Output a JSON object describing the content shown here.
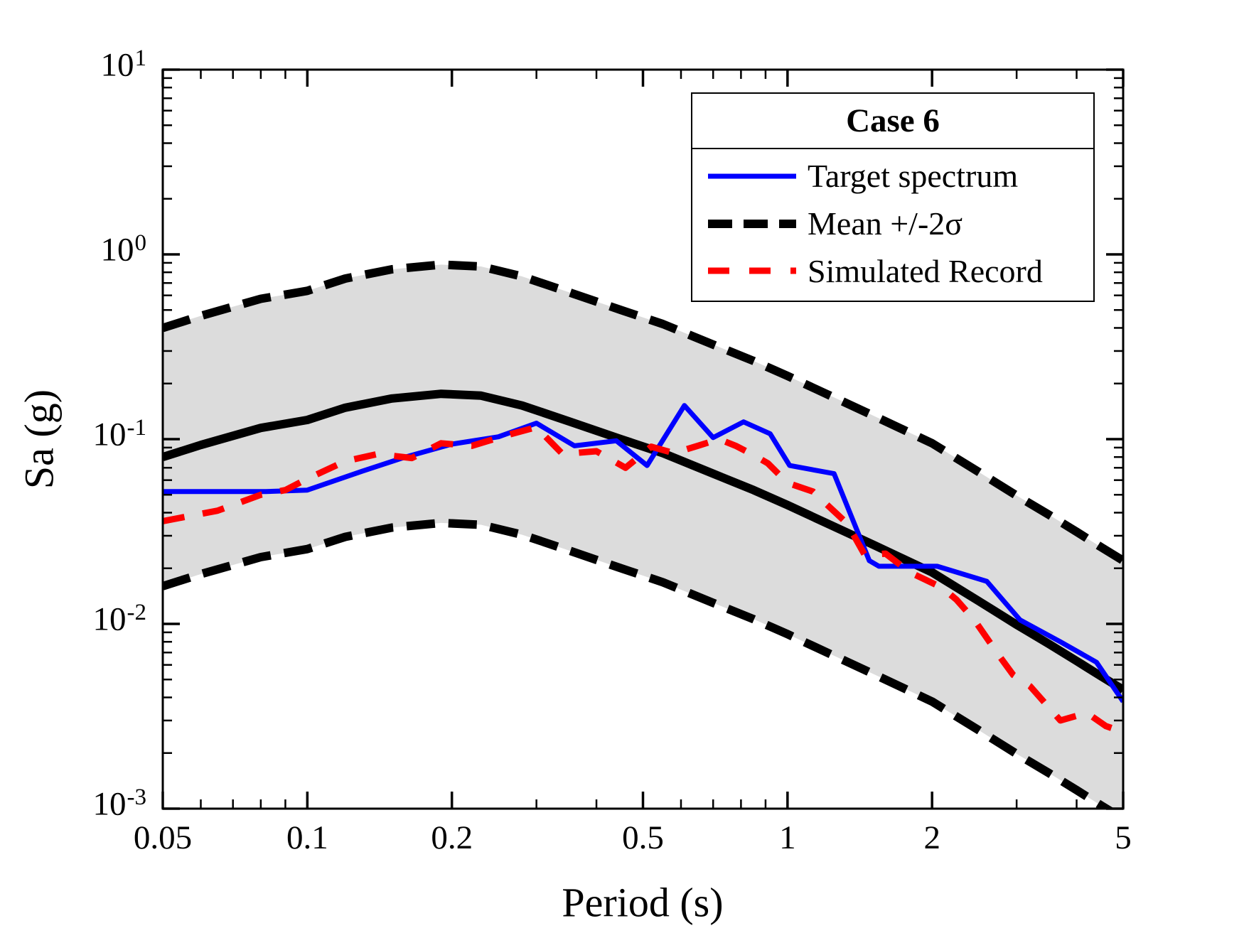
{
  "figure": {
    "xlabel": "Period (s)",
    "ylabel": "Sa (g)"
  },
  "legend": {
    "title": "Case 6",
    "entries": [
      {
        "label": "Target spectrum",
        "series": "target"
      },
      {
        "label": "Mean +/-2σ",
        "series": "bounds"
      },
      {
        "label": "Simulated Record",
        "series": "record"
      }
    ]
  },
  "axes": {
    "x": {
      "scale": "log",
      "min": 0.05,
      "max": 5,
      "major_ticks": [
        0.05,
        0.1,
        0.2,
        0.5,
        1,
        2,
        5
      ],
      "tick_labels": [
        "0.05",
        "0.1",
        "0.2",
        "0.5",
        "1",
        "2",
        "5"
      ],
      "minor_ticks": [
        0.06,
        0.07,
        0.08,
        0.09,
        0.3,
        0.4,
        0.6,
        0.7,
        0.8,
        0.9,
        3,
        4
      ]
    },
    "y": {
      "scale": "log",
      "min": 0.001,
      "max": 10,
      "tick_exponents": [
        1,
        0,
        -1,
        -2,
        -3
      ],
      "tick_base": "10"
    }
  },
  "colors": {
    "target_blue": "#0000ff",
    "record_red": "#ff0000",
    "mean_black": "#000000",
    "band_gray": "#dcdcdc",
    "axis_black": "#000000",
    "background": "#ffffff"
  },
  "chart_data": {
    "type": "line",
    "title": "Case 6",
    "xlabel": "Period (s)",
    "ylabel": "Sa (g)",
    "xscale": "log",
    "yscale": "log",
    "xlim": [
      0.05,
      5
    ],
    "ylim": [
      0.001,
      10
    ],
    "grid": false,
    "legend_position": "upper right",
    "band": {
      "fill": "#dcdcdc",
      "upper_series": "mean_plus_2sigma",
      "lower_series": "mean_minus_2sigma"
    },
    "series": [
      {
        "id": "upper",
        "name": "Mean +2σ",
        "color": "#000000",
        "style": "dashed",
        "width": 12,
        "dash": [
          40,
          19
        ],
        "points": [
          [
            0.05,
            0.4
          ],
          [
            0.06,
            0.465
          ],
          [
            0.08,
            0.575
          ],
          [
            0.1,
            0.635
          ],
          [
            0.12,
            0.74
          ],
          [
            0.15,
            0.83
          ],
          [
            0.19,
            0.88
          ],
          [
            0.23,
            0.86
          ],
          [
            0.28,
            0.76
          ],
          [
            0.35,
            0.625
          ],
          [
            0.45,
            0.5
          ],
          [
            0.55,
            0.42
          ],
          [
            0.7,
            0.325
          ],
          [
            0.85,
            0.265
          ],
          [
            1.0,
            0.22
          ],
          [
            1.2,
            0.1765
          ],
          [
            1.5,
            0.135
          ],
          [
            2.0,
            0.095
          ],
          [
            2.5,
            0.0665
          ],
          [
            3.0,
            0.0495
          ],
          [
            3.5,
            0.039
          ],
          [
            4.0,
            0.0315
          ],
          [
            4.5,
            0.026
          ],
          [
            5.0,
            0.022
          ]
        ]
      },
      {
        "id": "lower",
        "name": "Mean -2σ",
        "color": "#000000",
        "style": "dashed",
        "width": 12,
        "dash": [
          40,
          19
        ],
        "points": [
          [
            0.05,
            0.016
          ],
          [
            0.06,
            0.0186
          ],
          [
            0.08,
            0.023
          ],
          [
            0.1,
            0.0254
          ],
          [
            0.12,
            0.0296
          ],
          [
            0.15,
            0.0332
          ],
          [
            0.19,
            0.0352
          ],
          [
            0.23,
            0.0344
          ],
          [
            0.28,
            0.0304
          ],
          [
            0.35,
            0.025
          ],
          [
            0.45,
            0.02
          ],
          [
            0.55,
            0.0168
          ],
          [
            0.7,
            0.013
          ],
          [
            0.85,
            0.0106
          ],
          [
            1.0,
            0.0088
          ],
          [
            1.2,
            0.00706
          ],
          [
            1.5,
            0.0054
          ],
          [
            2.0,
            0.0038
          ],
          [
            2.5,
            0.00266
          ],
          [
            3.0,
            0.00198
          ],
          [
            3.5,
            0.00156
          ],
          [
            4.0,
            0.00126
          ],
          [
            4.5,
            0.00104
          ],
          [
            5.0,
            0.00088
          ]
        ]
      },
      {
        "id": "mean",
        "name": "Mean",
        "color": "#000000",
        "style": "solid",
        "width": 12,
        "points": [
          [
            0.05,
            0.08
          ],
          [
            0.06,
            0.093
          ],
          [
            0.08,
            0.115
          ],
          [
            0.1,
            0.127
          ],
          [
            0.12,
            0.148
          ],
          [
            0.15,
            0.166
          ],
          [
            0.19,
            0.176
          ],
          [
            0.23,
            0.172
          ],
          [
            0.28,
            0.152
          ],
          [
            0.35,
            0.125
          ],
          [
            0.45,
            0.1
          ],
          [
            0.55,
            0.084
          ],
          [
            0.7,
            0.065
          ],
          [
            0.85,
            0.053
          ],
          [
            1.0,
            0.044
          ],
          [
            1.2,
            0.0353
          ],
          [
            1.5,
            0.027
          ],
          [
            2.0,
            0.019
          ],
          [
            2.5,
            0.0133
          ],
          [
            3.0,
            0.0099
          ],
          [
            3.5,
            0.0078
          ],
          [
            4.0,
            0.0063
          ],
          [
            4.5,
            0.0052
          ],
          [
            5.0,
            0.0044
          ]
        ]
      },
      {
        "id": "target",
        "name": "Target spectrum",
        "color": "#0000ff",
        "style": "solid",
        "width": 7,
        "points": [
          [
            0.05,
            0.052
          ],
          [
            0.082,
            0.052
          ],
          [
            0.1,
            0.053
          ],
          [
            0.13,
            0.067
          ],
          [
            0.16,
            0.08
          ],
          [
            0.2,
            0.094
          ],
          [
            0.25,
            0.103
          ],
          [
            0.3,
            0.122
          ],
          [
            0.36,
            0.092
          ],
          [
            0.44,
            0.098
          ],
          [
            0.51,
            0.072
          ],
          [
            0.61,
            0.152
          ],
          [
            0.7,
            0.102
          ],
          [
            0.81,
            0.124
          ],
          [
            0.92,
            0.107
          ],
          [
            1.01,
            0.072
          ],
          [
            1.25,
            0.065
          ],
          [
            1.48,
            0.022
          ],
          [
            1.55,
            0.0205
          ],
          [
            2.05,
            0.0205
          ],
          [
            2.6,
            0.017
          ],
          [
            3.05,
            0.0105
          ],
          [
            3.7,
            0.008
          ],
          [
            4.4,
            0.0062
          ],
          [
            5.0,
            0.0038
          ]
        ]
      },
      {
        "id": "record",
        "name": "Simulated Record",
        "color": "#ff0000",
        "style": "dashed",
        "width": 9,
        "dash": [
          31,
          26
        ],
        "points": [
          [
            0.05,
            0.036
          ],
          [
            0.065,
            0.041
          ],
          [
            0.08,
            0.05
          ],
          [
            0.09,
            0.053
          ],
          [
            0.1,
            0.061
          ],
          [
            0.12,
            0.076
          ],
          [
            0.14,
            0.083
          ],
          [
            0.165,
            0.079
          ],
          [
            0.19,
            0.095
          ],
          [
            0.22,
            0.092
          ],
          [
            0.26,
            0.105
          ],
          [
            0.3,
            0.116
          ],
          [
            0.34,
            0.083
          ],
          [
            0.4,
            0.086
          ],
          [
            0.46,
            0.07
          ],
          [
            0.52,
            0.091
          ],
          [
            0.58,
            0.084
          ],
          [
            0.65,
            0.092
          ],
          [
            0.72,
            0.1
          ],
          [
            0.78,
            0.092
          ],
          [
            0.85,
            0.082
          ],
          [
            0.91,
            0.074
          ],
          [
            1.0,
            0.058
          ],
          [
            1.13,
            0.052
          ],
          [
            1.33,
            0.035
          ],
          [
            1.45,
            0.0235
          ],
          [
            1.6,
            0.024
          ],
          [
            1.8,
            0.019
          ],
          [
            2.1,
            0.0157
          ],
          [
            2.25,
            0.0135
          ],
          [
            2.45,
            0.0105
          ],
          [
            2.75,
            0.0068
          ],
          [
            2.95,
            0.0053
          ],
          [
            3.2,
            0.0046
          ],
          [
            3.7,
            0.003
          ],
          [
            4.2,
            0.0033
          ],
          [
            4.6,
            0.0028
          ],
          [
            5.0,
            0.0026
          ]
        ]
      }
    ]
  }
}
